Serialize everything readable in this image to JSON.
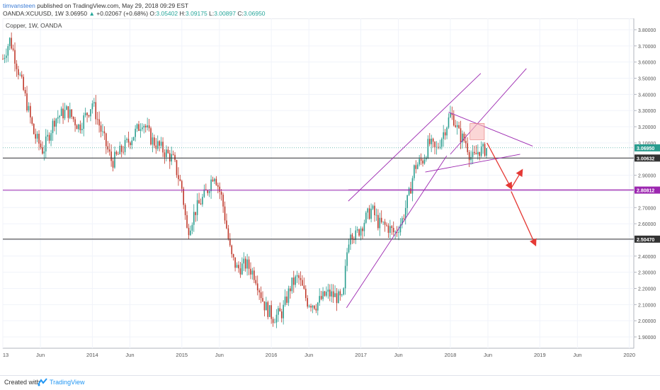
{
  "header": {
    "author": "timvansteen",
    "published": "published on TradingView.com, May 29, 2018 09:29 EST",
    "symbol": "OANDA:XCUUSD, 1W",
    "last": "3.06950",
    "change": "+0.02067 (+0.68%)",
    "open_label": "O:",
    "open": "3.05402",
    "high_label": "H:",
    "high": "3.09175",
    "low_label": "L:",
    "low": "3.00897",
    "close_label": "C:",
    "close": "3.06950"
  },
  "footer": {
    "created": "Created with",
    "brand": "TradingView"
  },
  "colors": {
    "up": "#26a69a",
    "down": "#ef5350",
    "candle_up": "#2a9d8f",
    "candle_down": "#c0392b",
    "channel": "#9c27b0",
    "arrow": "#e53935",
    "zone": "#f8bbbb"
  },
  "chart_data": {
    "type": "candlestick",
    "title": "Copper, 1W, OANDA",
    "ylim": [
      1.83,
      3.87
    ],
    "xlim": [
      2013.0,
      2020.05
    ],
    "y_ticks": [
      "1.90000",
      "2.00000",
      "2.10000",
      "2.20000",
      "2.30000",
      "2.40000",
      "2.50000",
      "2.60000",
      "2.70000",
      "2.80000",
      "2.90000",
      "3.00000",
      "3.10000",
      "3.20000",
      "3.30000",
      "3.40000",
      "3.50000",
      "3.60000",
      "3.70000",
      "3.80000"
    ],
    "y_tick_values": [
      1.9,
      2.0,
      2.1,
      2.2,
      2.3,
      2.4,
      2.5,
      2.6,
      2.7,
      2.8,
      2.9,
      3.0,
      3.1,
      3.2,
      3.3,
      3.4,
      3.5,
      3.6,
      3.7,
      3.8
    ],
    "x_ticks": [
      {
        "label": "13",
        "t": 2013.0
      },
      {
        "label": "Jun",
        "t": 2013.42
      },
      {
        "label": "2014",
        "t": 2014.0
      },
      {
        "label": "Jun",
        "t": 2014.42
      },
      {
        "label": "2015",
        "t": 2015.0
      },
      {
        "label": "Jun",
        "t": 2015.42
      },
      {
        "label": "2016",
        "t": 2016.0
      },
      {
        "label": "Jun",
        "t": 2016.42
      },
      {
        "label": "2017",
        "t": 2017.0
      },
      {
        "label": "Jun",
        "t": 2017.42
      },
      {
        "label": "2018",
        "t": 2018.0
      },
      {
        "label": "Jun",
        "t": 2018.42
      },
      {
        "label": "2019",
        "t": 2019.0
      },
      {
        "label": "Jun",
        "t": 2019.42
      },
      {
        "label": "2020",
        "t": 2020.0
      }
    ],
    "price_anchors": [
      [
        2013.0,
        3.62
      ],
      [
        2013.08,
        3.74
      ],
      [
        2013.14,
        3.62
      ],
      [
        2013.26,
        3.36
      ],
      [
        2013.35,
        3.15
      ],
      [
        2013.45,
        3.05
      ],
      [
        2013.58,
        3.25
      ],
      [
        2013.72,
        3.3
      ],
      [
        2013.85,
        3.2
      ],
      [
        2013.96,
        3.3
      ],
      [
        2014.0,
        3.35
      ],
      [
        2014.1,
        3.17
      ],
      [
        2014.22,
        2.98
      ],
      [
        2014.35,
        3.07
      ],
      [
        2014.5,
        3.18
      ],
      [
        2014.56,
        3.24
      ],
      [
        2014.66,
        3.12
      ],
      [
        2014.78,
        3.06
      ],
      [
        2014.9,
        3.0
      ],
      [
        2015.0,
        2.82
      ],
      [
        2015.06,
        2.55
      ],
      [
        2015.15,
        2.68
      ],
      [
        2015.28,
        2.8
      ],
      [
        2015.36,
        2.92
      ],
      [
        2015.45,
        2.75
      ],
      [
        2015.55,
        2.4
      ],
      [
        2015.62,
        2.32
      ],
      [
        2015.72,
        2.35
      ],
      [
        2015.82,
        2.28
      ],
      [
        2015.92,
        2.1
      ],
      [
        2016.02,
        2.02
      ],
      [
        2016.12,
        2.05
      ],
      [
        2016.22,
        2.22
      ],
      [
        2016.3,
        2.27
      ],
      [
        2016.4,
        2.12
      ],
      [
        2016.5,
        2.1
      ],
      [
        2016.62,
        2.17
      ],
      [
        2016.72,
        2.15
      ],
      [
        2016.8,
        2.12
      ],
      [
        2016.84,
        2.4
      ],
      [
        2016.88,
        2.57
      ],
      [
        2016.94,
        2.52
      ],
      [
        2017.04,
        2.62
      ],
      [
        2017.12,
        2.69
      ],
      [
        2017.2,
        2.6
      ],
      [
        2017.3,
        2.58
      ],
      [
        2017.38,
        2.54
      ],
      [
        2017.46,
        2.62
      ],
      [
        2017.54,
        2.78
      ],
      [
        2017.6,
        2.95
      ],
      [
        2017.7,
        3.0
      ],
      [
        2017.76,
        3.1
      ],
      [
        2017.84,
        3.05
      ],
      [
        2017.92,
        3.16
      ],
      [
        2018.0,
        3.27
      ],
      [
        2018.04,
        3.25
      ],
      [
        2018.1,
        3.15
      ],
      [
        2018.18,
        3.1
      ],
      [
        2018.22,
        3.02
      ],
      [
        2018.26,
        3.0
      ],
      [
        2018.32,
        3.06
      ],
      [
        2018.36,
        3.05
      ],
      [
        2018.41,
        3.0695
      ]
    ],
    "horizontal_levels": [
      {
        "value": 3.00632,
        "label": "3.00632",
        "color": "#333333"
      },
      {
        "value": 2.80812,
        "label": "2.80812",
        "color": "#9c27b0"
      },
      {
        "value": 2.5047,
        "label": "2.50470",
        "color": "#333333"
      }
    ],
    "last_price": {
      "value": 3.0695,
      "label": "3.06950"
    },
    "channel_lines": [
      {
        "x1": 2016.84,
        "y1": 2.08,
        "x2": 2017.96,
        "y2": 3.02
      },
      {
        "x1": 2016.86,
        "y1": 2.74,
        "x2": 2018.34,
        "y2": 3.53
      },
      {
        "x1": 2018.0,
        "y1": 3.03,
        "x2": 2018.85,
        "y2": 3.56
      }
    ],
    "triangle_lines": [
      {
        "x1": 2017.72,
        "y1": 2.92,
        "x2": 2018.78,
        "y2": 3.03
      },
      {
        "x1": 2017.98,
        "y1": 3.29,
        "x2": 2018.92,
        "y2": 3.08
      }
    ],
    "support_line": {
      "x1": 2016.86,
      "y1": 2.81,
      "x2": 2020.05,
      "y2": 2.81
    },
    "zone": {
      "x1": 2018.22,
      "x2": 2018.38,
      "y1": 3.12,
      "y2": 3.22
    },
    "arrows": [
      [
        [
          2018.41,
          3.1
        ],
        [
          2018.68,
          2.82
        ]
      ],
      [
        [
          2018.68,
          2.82
        ],
        [
          2018.8,
          2.93
        ]
      ],
      [
        [
          2018.68,
          2.8
        ],
        [
          2018.95,
          2.47
        ]
      ]
    ]
  }
}
